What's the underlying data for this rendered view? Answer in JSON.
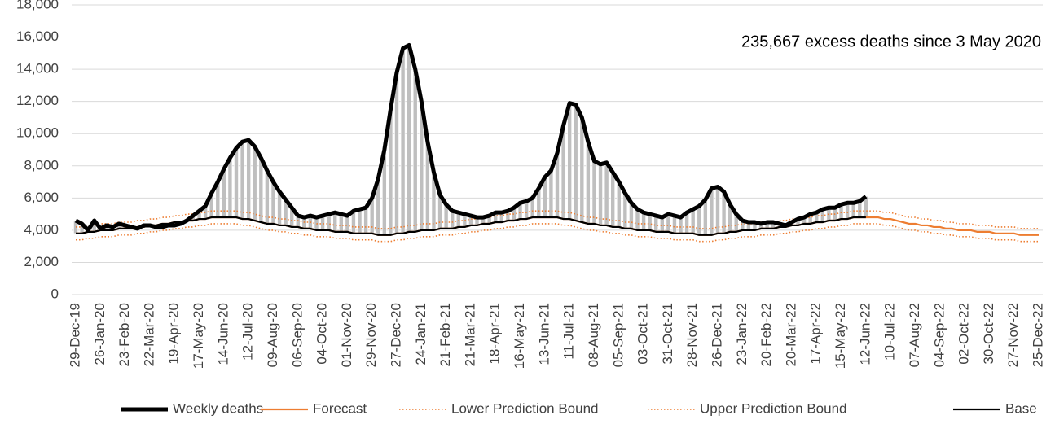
{
  "chart_data": {
    "type": "line",
    "annotation": "235,667 excess deaths since 3 May 2020",
    "categories": [
      "29-Dec-19",
      null,
      null,
      null,
      "26-Jan-20",
      null,
      null,
      null,
      "23-Feb-20",
      null,
      null,
      null,
      "22-Mar-20",
      null,
      null,
      null,
      "19-Apr-20",
      null,
      null,
      null,
      "17-May-20",
      null,
      null,
      null,
      "14-Jun-20",
      null,
      null,
      null,
      "12-Jul-20",
      null,
      null,
      null,
      "09-Aug-20",
      null,
      null,
      null,
      "06-Sep-20",
      null,
      null,
      null,
      "04-Oct-20",
      null,
      null,
      null,
      "01-Nov-20",
      null,
      null,
      null,
      "29-Nov-20",
      null,
      null,
      null,
      "27-Dec-20",
      null,
      null,
      null,
      "24-Jan-21",
      null,
      null,
      null,
      "21-Feb-21",
      null,
      null,
      null,
      "21-Mar-21",
      null,
      null,
      null,
      "18-Apr-21",
      null,
      null,
      null,
      "16-May-21",
      null,
      null,
      null,
      "13-Jun-21",
      null,
      null,
      null,
      "11-Jul-21",
      null,
      null,
      null,
      "08-Aug-21",
      null,
      null,
      null,
      "05-Sep-21",
      null,
      null,
      null,
      "03-Oct-21",
      null,
      null,
      null,
      "31-Oct-21",
      null,
      null,
      null,
      "28-Nov-21",
      null,
      null,
      null,
      "26-Dec-21",
      null,
      null,
      null,
      "23-Jan-22",
      null,
      null,
      null,
      "20-Feb-22",
      null,
      null,
      null,
      "20-Mar-22",
      null,
      null,
      null,
      "17-Apr-22",
      null,
      null,
      null,
      "15-May-22",
      null,
      null,
      null,
      "12-Jun-22",
      null,
      null,
      null,
      "10-Jul-22",
      null,
      null,
      null,
      "07-Aug-22",
      null,
      null,
      null,
      "04-Sep-22",
      null,
      null,
      null,
      "02-Oct-22",
      null,
      null,
      null,
      "30-Oct-22",
      null,
      null,
      null,
      "27-Nov-22",
      null,
      null,
      null,
      "25-Dec-22"
    ],
    "excess_color": "#bfbfbf",
    "series": [
      {
        "name": "Weekly deaths",
        "color": "#000000",
        "line_style": "thick",
        "values": [
          4600,
          4400,
          4000,
          4600,
          4100,
          4300,
          4200,
          4400,
          4300,
          4200,
          4100,
          4300,
          4300,
          4200,
          4200,
          4300,
          4300,
          4400,
          4600,
          4900,
          5200,
          5500,
          6300,
          7000,
          7800,
          8500,
          9100,
          9500,
          9600,
          9200,
          8500,
          7700,
          7000,
          6400,
          5900,
          5400,
          4900,
          4800,
          4900,
          4800,
          4900,
          5000,
          5100,
          5000,
          4900,
          5200,
          5300,
          5400,
          6000,
          7200,
          9000,
          11500,
          13800,
          15300,
          15500,
          14000,
          12000,
          9500,
          7600,
          6200,
          5600,
          5200,
          5100,
          5000,
          4900,
          4800,
          4800,
          4900,
          5100,
          5100,
          5200,
          5400,
          5700,
          5800,
          6000,
          6600,
          7300,
          7700,
          8800,
          10500,
          11900,
          11800,
          11000,
          9500,
          8300,
          8100,
          8200,
          7600,
          7000,
          6300,
          5700,
          5300,
          5100,
          5000,
          4900,
          4800,
          5000,
          4900,
          4800,
          5100,
          5300,
          5500,
          5900,
          6600,
          6700,
          6400,
          5600,
          5000,
          4600,
          4500,
          4500,
          4400,
          4500,
          4500,
          4400,
          4300,
          4500,
          4700,
          4800,
          5000,
          5100,
          5300,
          5400,
          5400,
          5600,
          5700,
          5700,
          5800,
          6100,
          null,
          null,
          null,
          null,
          null,
          null,
          null,
          null,
          null,
          null,
          null,
          null,
          null,
          null,
          null,
          null,
          null,
          null,
          null,
          null,
          null,
          null,
          null,
          null,
          null,
          null,
          null,
          null
        ]
      },
      {
        "name": "Forecast",
        "color": "#ed7d31",
        "line_style": "solid",
        "values": [
          3800,
          3800,
          3900,
          3900,
          4000,
          4000,
          4000,
          4100,
          4100,
          4100,
          4200,
          4200,
          4300,
          4300,
          4400,
          4400,
          4500,
          4500,
          4600,
          4600,
          4700,
          4700,
          4800,
          4800,
          4800,
          4800,
          4800,
          4700,
          4700,
          4600,
          4500,
          4400,
          4400,
          4300,
          4300,
          4200,
          4200,
          4100,
          4100,
          4000,
          4000,
          4000,
          3900,
          3900,
          3900,
          3800,
          3800,
          3800,
          3800,
          3700,
          3700,
          3700,
          3800,
          3800,
          3900,
          3900,
          4000,
          4000,
          4000,
          4100,
          4100,
          4100,
          4200,
          4200,
          4300,
          4300,
          4400,
          4400,
          4500,
          4500,
          4600,
          4600,
          4700,
          4700,
          4800,
          4800,
          4800,
          4800,
          4800,
          4700,
          4700,
          4600,
          4500,
          4400,
          4400,
          4300,
          4300,
          4200,
          4200,
          4100,
          4100,
          4000,
          4000,
          4000,
          3900,
          3900,
          3900,
          3800,
          3800,
          3800,
          3800,
          3700,
          3700,
          3700,
          3800,
          3800,
          3900,
          3900,
          4000,
          4000,
          4000,
          4100,
          4100,
          4100,
          4200,
          4200,
          4300,
          4300,
          4400,
          4400,
          4500,
          4500,
          4600,
          4600,
          4700,
          4700,
          4800,
          4800,
          4800,
          4800,
          4800,
          4700,
          4700,
          4600,
          4500,
          4400,
          4400,
          4300,
          4300,
          4200,
          4200,
          4100,
          4100,
          4000,
          4000,
          4000,
          3900,
          3900,
          3900,
          3800,
          3800,
          3800,
          3800,
          3700,
          3700,
          3700,
          3700
        ]
      },
      {
        "name": "Lower Prediction Bound",
        "color": "#ed7d31",
        "line_style": "dotted",
        "values": [
          3400,
          3400,
          3500,
          3500,
          3600,
          3600,
          3600,
          3700,
          3700,
          3700,
          3800,
          3800,
          3900,
          3900,
          4000,
          4000,
          4100,
          4100,
          4200,
          4200,
          4300,
          4300,
          4400,
          4400,
          4400,
          4400,
          4400,
          4300,
          4300,
          4200,
          4100,
          4000,
          4000,
          3900,
          3900,
          3800,
          3800,
          3700,
          3700,
          3600,
          3600,
          3600,
          3500,
          3500,
          3500,
          3400,
          3400,
          3400,
          3400,
          3300,
          3300,
          3300,
          3400,
          3400,
          3500,
          3500,
          3600,
          3600,
          3600,
          3700,
          3700,
          3700,
          3800,
          3800,
          3900,
          3900,
          4000,
          4000,
          4100,
          4100,
          4200,
          4200,
          4300,
          4300,
          4400,
          4400,
          4400,
          4400,
          4400,
          4300,
          4300,
          4200,
          4100,
          4000,
          4000,
          3900,
          3900,
          3800,
          3800,
          3700,
          3700,
          3600,
          3600,
          3600,
          3500,
          3500,
          3500,
          3400,
          3400,
          3400,
          3400,
          3300,
          3300,
          3300,
          3400,
          3400,
          3500,
          3500,
          3600,
          3600,
          3600,
          3700,
          3700,
          3700,
          3800,
          3800,
          3900,
          3900,
          4000,
          4000,
          4100,
          4100,
          4200,
          4200,
          4300,
          4300,
          4400,
          4400,
          4400,
          4400,
          4400,
          4300,
          4300,
          4200,
          4100,
          4000,
          4000,
          3900,
          3900,
          3800,
          3800,
          3700,
          3700,
          3600,
          3600,
          3600,
          3500,
          3500,
          3500,
          3400,
          3400,
          3400,
          3400,
          3300,
          3300,
          3300,
          3300
        ]
      },
      {
        "name": "Upper Prediction Bound",
        "color": "#ed7d31",
        "line_style": "dotted",
        "values": [
          4200,
          4200,
          4300,
          4300,
          4400,
          4400,
          4400,
          4500,
          4500,
          4500,
          4600,
          4600,
          4700,
          4700,
          4800,
          4800,
          4900,
          4900,
          5000,
          5000,
          5100,
          5100,
          5200,
          5200,
          5200,
          5200,
          5200,
          5100,
          5100,
          5000,
          4900,
          4800,
          4800,
          4700,
          4700,
          4600,
          4600,
          4500,
          4500,
          4400,
          4400,
          4400,
          4300,
          4300,
          4300,
          4200,
          4200,
          4200,
          4200,
          4100,
          4100,
          4100,
          4200,
          4200,
          4300,
          4300,
          4400,
          4400,
          4400,
          4500,
          4500,
          4500,
          4600,
          4600,
          4700,
          4700,
          4800,
          4800,
          4900,
          4900,
          5000,
          5000,
          5100,
          5100,
          5200,
          5200,
          5200,
          5200,
          5200,
          5100,
          5100,
          5000,
          4900,
          4800,
          4800,
          4700,
          4700,
          4600,
          4600,
          4500,
          4500,
          4400,
          4400,
          4400,
          4300,
          4300,
          4300,
          4200,
          4200,
          4200,
          4200,
          4100,
          4100,
          4100,
          4200,
          4200,
          4300,
          4300,
          4400,
          4400,
          4400,
          4500,
          4500,
          4500,
          4600,
          4600,
          4700,
          4700,
          4800,
          4800,
          4900,
          4900,
          5000,
          5000,
          5100,
          5100,
          5200,
          5200,
          5200,
          5200,
          5200,
          5100,
          5100,
          5000,
          4900,
          4800,
          4800,
          4700,
          4700,
          4600,
          4600,
          4500,
          4500,
          4400,
          4400,
          4400,
          4300,
          4300,
          4300,
          4200,
          4200,
          4200,
          4200,
          4100,
          4100,
          4100,
          4100
        ]
      },
      {
        "name": "Base",
        "color": "#000000",
        "line_style": "solid",
        "values": [
          3800,
          3800,
          3900,
          3900,
          4000,
          4000,
          4000,
          4100,
          4100,
          4100,
          4200,
          4200,
          4300,
          4300,
          4400,
          4400,
          4500,
          4500,
          4600,
          4600,
          4700,
          4700,
          4800,
          4800,
          4800,
          4800,
          4800,
          4700,
          4700,
          4600,
          4500,
          4400,
          4400,
          4300,
          4300,
          4200,
          4200,
          4100,
          4100,
          4000,
          4000,
          4000,
          3900,
          3900,
          3900,
          3800,
          3800,
          3800,
          3800,
          3700,
          3700,
          3700,
          3800,
          3800,
          3900,
          3900,
          4000,
          4000,
          4000,
          4100,
          4100,
          4100,
          4200,
          4200,
          4300,
          4300,
          4400,
          4400,
          4500,
          4500,
          4600,
          4600,
          4700,
          4700,
          4800,
          4800,
          4800,
          4800,
          4800,
          4700,
          4700,
          4600,
          4500,
          4400,
          4400,
          4300,
          4300,
          4200,
          4200,
          4100,
          4100,
          4000,
          4000,
          4000,
          3900,
          3900,
          3900,
          3800,
          3800,
          3800,
          3800,
          3700,
          3700,
          3700,
          3800,
          3800,
          3900,
          3900,
          4000,
          4000,
          4000,
          4100,
          4100,
          4100,
          4200,
          4200,
          4300,
          4300,
          4400,
          4400,
          4500,
          4500,
          4600,
          4600,
          4700,
          4700,
          4800,
          4800,
          4800,
          null,
          null,
          null,
          null,
          null,
          null,
          null,
          null,
          null,
          null,
          null,
          null,
          null,
          null,
          null,
          null,
          null,
          null,
          null,
          null,
          null,
          null,
          null,
          null,
          null,
          null,
          null,
          null
        ]
      }
    ],
    "ylim": [
      0,
      18000
    ],
    "yticks": [
      0,
      {
        "value": 2000,
        "label": "2,000"
      },
      {
        "value": 4000,
        "label": "4,000"
      },
      {
        "value": 6000,
        "label": "6,000"
      },
      {
        "value": 8000,
        "label": "8,000"
      },
      {
        "value": 10000,
        "label": "10,000"
      },
      {
        "value": 12000,
        "label": "12,000"
      },
      {
        "value": 14000,
        "label": "14,000"
      },
      {
        "value": 16000,
        "label": "16,000"
      },
      {
        "value": 18000,
        "label": "18,000"
      }
    ],
    "grid": true,
    "legend": "bottom"
  }
}
